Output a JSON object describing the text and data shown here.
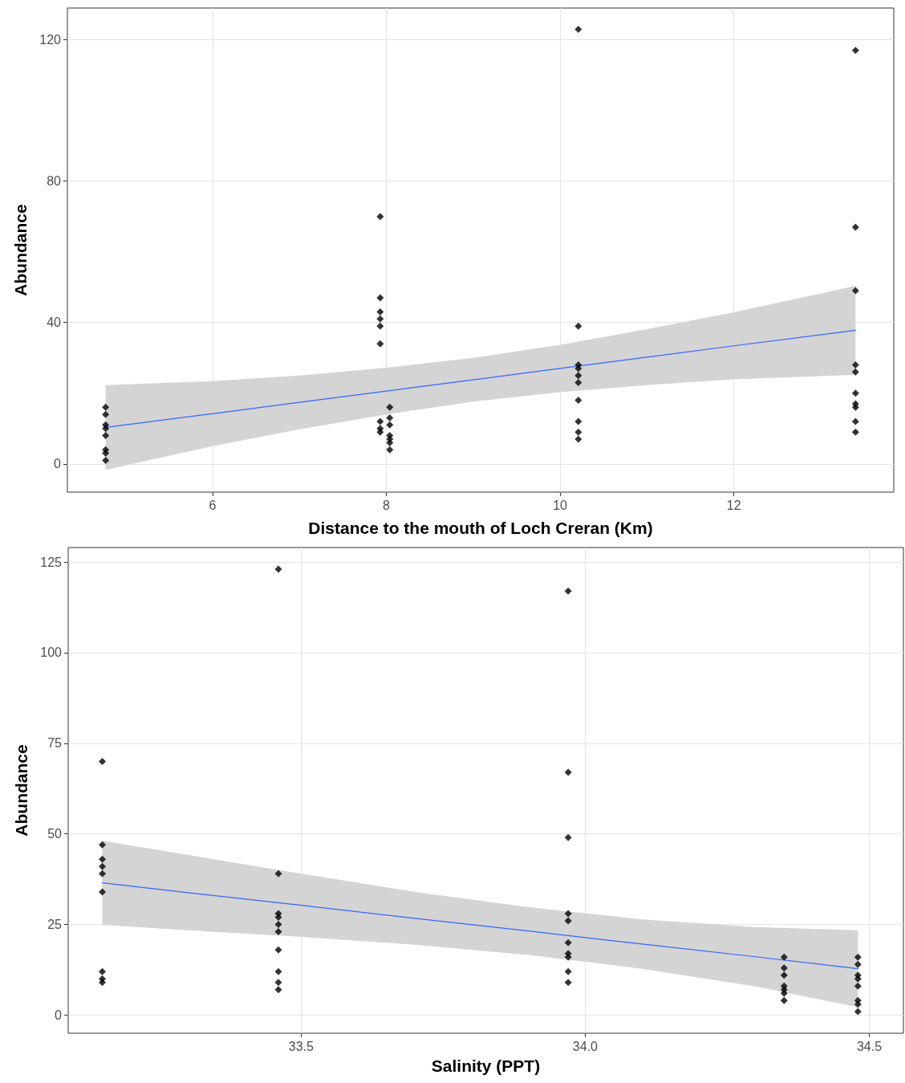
{
  "chart_data": [
    {
      "type": "scatter",
      "xlabel": "Distance to the mouth of Loch Creran (Km)",
      "ylabel": "Abundance",
      "xlim": [
        4.33,
        13.84
      ],
      "xticks": [
        6,
        8,
        10,
        12
      ],
      "ylim": [
        -8,
        129
      ],
      "yticks": [
        0,
        40,
        80,
        120
      ],
      "grid": true,
      "series": [
        {
          "marker": "diamond",
          "color": "#000000",
          "x": [
            4.77,
            4.77,
            4.77,
            4.77,
            4.77,
            4.77,
            4.77,
            4.77,
            7.93,
            7.93,
            7.93,
            7.93,
            7.93,
            7.93,
            7.93,
            7.93,
            7.93,
            8.04,
            8.04,
            8.04,
            8.04,
            8.04,
            8.04,
            8.04,
            10.21,
            10.21,
            10.21,
            10.21,
            10.21,
            10.21,
            10.21,
            10.21,
            10.21,
            10.21,
            13.4,
            13.4,
            13.4,
            13.4,
            13.4,
            13.4,
            13.4,
            13.4,
            13.4,
            13.4
          ],
          "values": [
            16,
            14,
            11,
            10,
            8,
            4,
            3,
            1,
            70,
            47,
            43,
            41,
            39,
            34,
            12,
            10,
            9,
            16,
            13,
            11,
            8,
            7,
            6,
            4,
            123,
            39,
            28,
            27,
            25,
            23,
            18,
            12,
            9,
            7,
            117,
            67,
            49,
            28,
            26,
            20,
            17,
            16,
            12,
            9
          ]
        },
        {
          "type": "line",
          "marker": "none",
          "color": "#3366ff",
          "x": [
            4.77,
            6,
            7,
            8,
            9,
            10,
            11,
            12,
            13.4
          ],
          "values": [
            10.3,
            14.2,
            17.4,
            20.6,
            23.8,
            27.0,
            30.2,
            33.4,
            37.8
          ],
          "lower": [
            -1.7,
            5.0,
            9.8,
            14.0,
            17.6,
            20.3,
            22.3,
            23.9,
            25.2
          ],
          "upper": [
            22.3,
            23.4,
            25.0,
            27.2,
            30.0,
            33.7,
            38.1,
            42.9,
            50.4
          ]
        }
      ]
    },
    {
      "type": "scatter",
      "xlabel": "Salinity (PPT)",
      "ylabel": "Abundance",
      "xlim": [
        33.09,
        34.56
      ],
      "xticks": [
        33.5,
        {
          "value": 34,
          "label": "34.0"
        },
        34.5
      ],
      "ylim": [
        -5,
        129
      ],
      "yticks": [
        0,
        25,
        50,
        75,
        100,
        125
      ],
      "grid": true,
      "series": [
        {
          "marker": "diamond",
          "color": "#000000",
          "x": [
            33.15,
            33.15,
            33.15,
            33.15,
            33.15,
            33.15,
            33.15,
            33.15,
            33.15,
            33.46,
            33.46,
            33.46,
            33.46,
            33.46,
            33.46,
            33.46,
            33.46,
            33.46,
            33.46,
            33.97,
            33.97,
            33.97,
            33.97,
            33.97,
            33.97,
            33.97,
            33.97,
            33.97,
            33.97,
            34.35,
            34.35,
            34.35,
            34.35,
            34.35,
            34.35,
            34.35,
            34.48,
            34.48,
            34.48,
            34.48,
            34.48,
            34.48,
            34.48,
            34.48
          ],
          "values": [
            70,
            47,
            43,
            41,
            39,
            34,
            12,
            10,
            9,
            123,
            39,
            28,
            27,
            25,
            23,
            18,
            12,
            9,
            7,
            117,
            67,
            49,
            28,
            26,
            20,
            17,
            16,
            12,
            9,
            16,
            13,
            11,
            8,
            7,
            6,
            4,
            16,
            14,
            11,
            10,
            8,
            4,
            3,
            1
          ]
        },
        {
          "type": "line",
          "marker": "none",
          "color": "#3366ff",
          "x": [
            33.15,
            33.3,
            33.5,
            33.7,
            33.9,
            34.1,
            34.3,
            34.48
          ],
          "values": [
            36.5,
            33.8,
            30.3,
            26.7,
            23.2,
            19.6,
            16.1,
            12.8
          ],
          "lower": [
            24.9,
            23.4,
            21.6,
            19.4,
            16.6,
            12.8,
            7.9,
            2.2
          ],
          "upper": [
            48.1,
            44.2,
            39.0,
            34.0,
            29.8,
            26.4,
            24.3,
            23.4
          ]
        }
      ]
    }
  ]
}
